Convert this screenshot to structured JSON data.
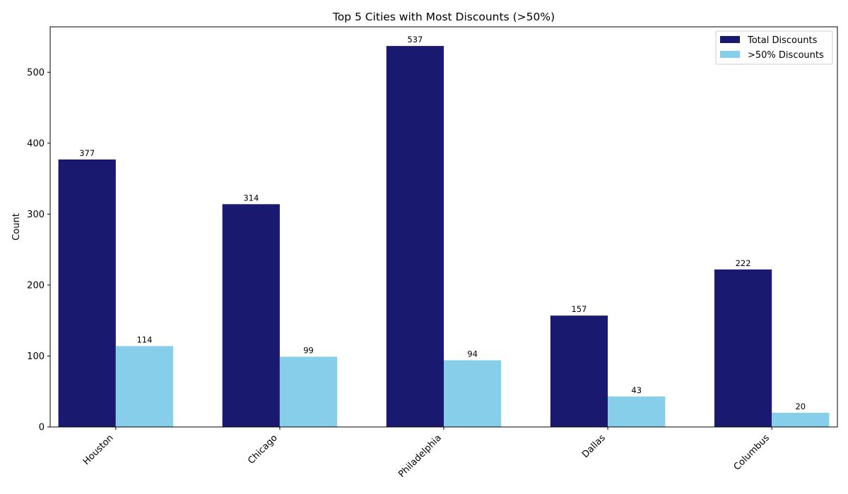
{
  "chart_data": {
    "type": "bar",
    "title": "Top 5 Cities with Most Discounts (>50%)",
    "xlabel": "",
    "ylabel": "Count",
    "categories": [
      "Houston",
      "Chicago",
      "Philadelphia",
      "Dallas",
      "Columbus"
    ],
    "series": [
      {
        "name": "Total Discounts",
        "color": "#191970",
        "values": [
          377,
          314,
          537,
          157,
          222
        ]
      },
      {
        "name": ">50% Discounts",
        "color": "#87CEEB",
        "values": [
          114,
          99,
          94,
          43,
          20
        ]
      }
    ],
    "ylim": [
      0,
      564
    ],
    "yticks": [
      0,
      100,
      200,
      300,
      400,
      500
    ],
    "grid": false,
    "legend": "top-right"
  }
}
